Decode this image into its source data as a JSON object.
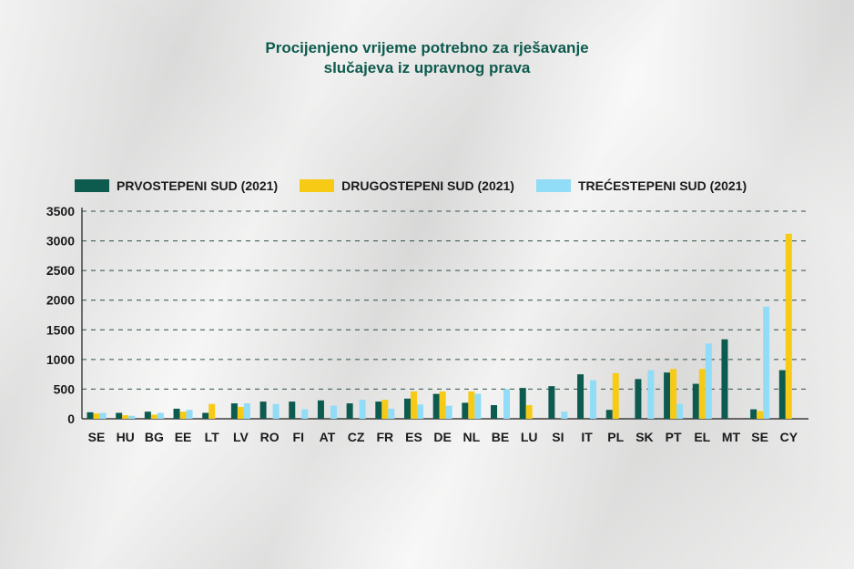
{
  "chart_data": {
    "type": "bar",
    "title": [
      "Procijenjeno vrijeme potrebno za rješavanje",
      "slučajeva iz upravnog prava"
    ],
    "categories": [
      "SE",
      "HU",
      "BG",
      "EE",
      "LT",
      "LV",
      "RO",
      "FI",
      "AT",
      "CZ",
      "FR",
      "ES",
      "DE",
      "NL",
      "BE",
      "LU",
      "SI",
      "IT",
      "PL",
      "SK",
      "PT",
      "EL",
      "MT",
      "SE",
      "CY"
    ],
    "series": [
      {
        "name": "PRVOSTEPENI SUD (2021)",
        "color": "#0d5a4e",
        "values": [
          110,
          100,
          120,
          170,
          100,
          260,
          290,
          290,
          310,
          260,
          290,
          340,
          420,
          270,
          230,
          520,
          550,
          750,
          150,
          670,
          780,
          590,
          1340,
          160,
          820
        ]
      },
      {
        "name": "DRUGOSTEPENI SUD (2021)",
        "color": "#f7cb15",
        "values": [
          90,
          60,
          70,
          120,
          250,
          200,
          0,
          0,
          0,
          0,
          320,
          460,
          460,
          460,
          0,
          230,
          0,
          0,
          770,
          0,
          840,
          840,
          0,
          130,
          3120
        ]
      },
      {
        "name": "TREĆESTEPENI SUD (2021)",
        "color": "#91dcf7",
        "values": [
          100,
          50,
          100,
          150,
          0,
          260,
          250,
          160,
          220,
          320,
          170,
          240,
          220,
          420,
          500,
          0,
          120,
          650,
          0,
          820,
          250,
          1270,
          0,
          1890,
          0
        ]
      }
    ],
    "yticks": [
      0,
      500,
      1000,
      1500,
      2000,
      2500,
      3000,
      3500
    ],
    "ylim": [
      0,
      3500
    ],
    "grid": true,
    "legend_position": "top"
  }
}
